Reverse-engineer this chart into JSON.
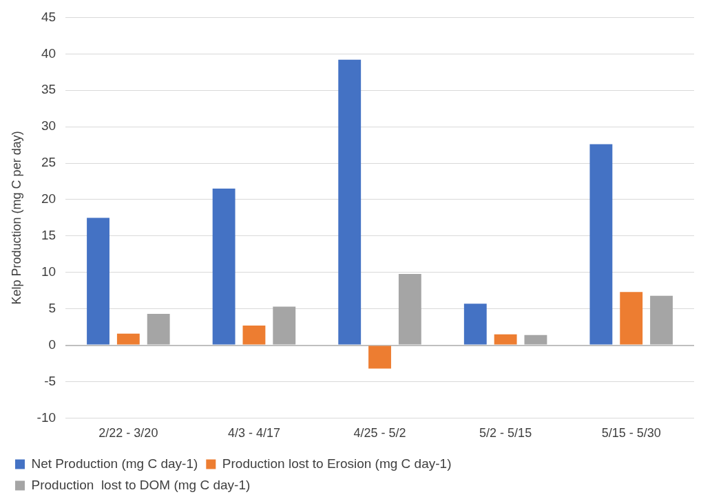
{
  "chart_data": {
    "type": "bar",
    "ylabel": "Kelp Production (mg C per day)",
    "categories": [
      "2/22 - 3/20",
      "4/3 - 4/17",
      "4/25 - 5/2",
      "5/2 - 5/15",
      "5/15 - 5/30"
    ],
    "series": [
      {
        "name": "Net Production (mg C day-1)",
        "color": "#4472c4",
        "values": [
          17.5,
          21.5,
          39.2,
          5.7,
          27.6
        ]
      },
      {
        "name": "Production lost to Erosion (mg C day-1)",
        "color": "#ed7d31",
        "values": [
          1.6,
          2.7,
          -3.2,
          1.5,
          7.3
        ]
      },
      {
        "name": "Production  lost to DOM (mg C day-1)",
        "color": "#a5a5a5",
        "values": [
          4.3,
          5.3,
          9.8,
          1.4,
          6.8
        ]
      }
    ],
    "ylim": [
      -10,
      45
    ],
    "yticks": [
      -10,
      -5,
      0,
      5,
      10,
      15,
      20,
      25,
      30,
      35,
      40,
      45
    ],
    "grid": "y",
    "legend": "bottom"
  }
}
